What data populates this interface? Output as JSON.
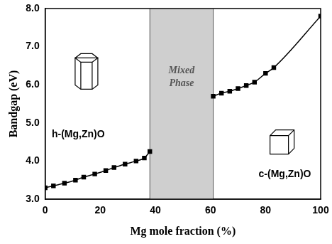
{
  "chart_data": {
    "type": "scatter",
    "x_label": "Mg mole fraction (%)",
    "y_label": "Bandgap (eV)",
    "xlim": [
      0,
      100
    ],
    "xticks": [
      0,
      20,
      40,
      60,
      80,
      100
    ],
    "ylim": [
      3,
      8
    ],
    "yticks": [
      {
        "value": 3,
        "label": "3.0"
      },
      {
        "value": 4,
        "label": "4.0"
      },
      {
        "value": 5,
        "label": "5.0"
      },
      {
        "value": 6,
        "label": "6.0"
      },
      {
        "value": 7,
        "label": "7.0"
      },
      {
        "value": 8,
        "label": "8.0"
      }
    ],
    "grid": false,
    "series": [
      {
        "name": "h-(Mg,Zn)O",
        "color": "#000000",
        "marker": "square",
        "line_style": "solid",
        "x": [
          0,
          3,
          7,
          11,
          14,
          18,
          22,
          25,
          29,
          33,
          36,
          38
        ],
        "values": [
          3.3,
          3.35,
          3.42,
          3.5,
          3.58,
          3.66,
          3.75,
          3.83,
          3.92,
          4.0,
          4.08,
          4.25
        ]
      },
      {
        "name": "c-(Mg,Zn)O",
        "color": "#000000",
        "marker": "square",
        "line_style": "solid",
        "x": [
          61,
          64,
          67,
          70,
          73,
          76,
          80,
          83,
          100
        ],
        "values": [
          5.7,
          5.78,
          5.83,
          5.9,
          5.98,
          6.07,
          6.3,
          6.45,
          7.8
        ]
      }
    ],
    "regions": [
      {
        "label": "Mixed Phase",
        "range": [
          38,
          61
        ],
        "color": "#cfcfcf"
      }
    ]
  }
}
